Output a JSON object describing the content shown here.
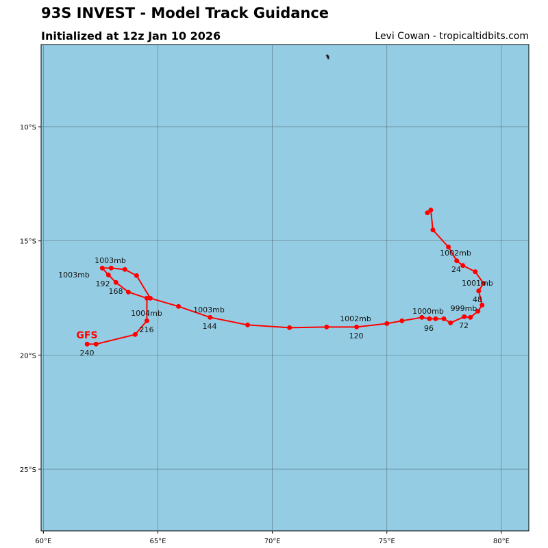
{
  "header": {
    "title": "93S INVEST - Model Track Guidance",
    "subtitle": "Initialized at 12z Jan 10 2026",
    "credit": "Levi Cowan - tropicaltidbits.com"
  },
  "chart_data": {
    "type": "map-track",
    "extent": {
      "lon": [
        59.9,
        81.2
      ],
      "lat": [
        -27.7,
        -6.4
      ]
    },
    "lon_ticks": [
      {
        "v": 60,
        "t": "60°E"
      },
      {
        "v": 65,
        "t": "65°E"
      },
      {
        "v": 70,
        "t": "70°E"
      },
      {
        "v": 75,
        "t": "75°E"
      },
      {
        "v": 80,
        "t": "80°E"
      }
    ],
    "lat_ticks": [
      {
        "v": -10,
        "t": "10°S"
      },
      {
        "v": -15,
        "t": "15°S"
      },
      {
        "v": -20,
        "t": "20°S"
      },
      {
        "v": -25,
        "t": "25°S"
      }
    ],
    "colors": {
      "ocean": "#94cde3",
      "track": "#ff0000",
      "grid": "#5f7f8c",
      "land": "#222222"
    },
    "model": "GFS",
    "track": [
      [
        76.77,
        -13.77
      ],
      [
        76.92,
        -13.65
      ],
      [
        77.01,
        -14.52
      ],
      [
        77.69,
        -15.27
      ],
      [
        78.05,
        -15.87
      ],
      [
        78.32,
        -16.08
      ],
      [
        78.86,
        -16.35
      ],
      [
        79.22,
        -16.86
      ],
      [
        79.01,
        -17.19
      ],
      [
        79.16,
        -17.81
      ],
      [
        78.98,
        -18.08
      ],
      [
        78.65,
        -18.35
      ],
      [
        78.38,
        -18.32
      ],
      [
        77.78,
        -18.59
      ],
      [
        77.49,
        -18.41
      ],
      [
        77.13,
        -18.41
      ],
      [
        76.86,
        -18.41
      ],
      [
        76.53,
        -18.35
      ],
      [
        75.66,
        -18.5
      ],
      [
        75.0,
        -18.62
      ],
      [
        73.68,
        -18.77
      ],
      [
        72.37,
        -18.77
      ],
      [
        70.75,
        -18.8
      ],
      [
        68.92,
        -18.68
      ],
      [
        67.28,
        -18.35
      ],
      [
        65.9,
        -17.87
      ],
      [
        64.67,
        -17.51
      ],
      [
        64.07,
        -16.52
      ],
      [
        63.56,
        -16.25
      ],
      [
        62.96,
        -16.19
      ],
      [
        62.57,
        -16.19
      ],
      [
        62.84,
        -16.49
      ],
      [
        63.17,
        -16.82
      ],
      [
        63.71,
        -17.24
      ],
      [
        64.52,
        -17.51
      ],
      [
        64.52,
        -18.5
      ],
      [
        64.01,
        -19.1
      ],
      [
        62.3,
        -19.52
      ],
      [
        61.91,
        -19.52
      ]
    ],
    "island": [
      72.42,
      -6.95
    ],
    "labels": {
      "p1": "1002mb",
      "h24": "24",
      "p2": "1001mb",
      "h48": "48",
      "p3": "999mb",
      "h72": "72",
      "p4": "1000mb",
      "h96": "96",
      "p5": "1002mb",
      "h120": "120",
      "p6": "1003mb",
      "h144": "144",
      "p7": "1003mb",
      "p8": "1003mb",
      "h168": "168",
      "h192": "192",
      "p9": "1004mb",
      "h216": "216",
      "h240": "240"
    }
  }
}
